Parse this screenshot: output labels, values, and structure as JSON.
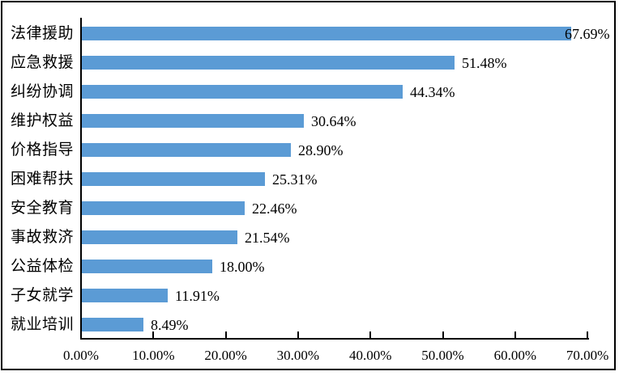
{
  "chart_data": {
    "type": "bar",
    "orientation": "horizontal",
    "title": "",
    "xlabel": "",
    "ylabel": "",
    "xlim": [
      0,
      70
    ],
    "grid": false,
    "legend": "none",
    "categories": [
      "法律援助",
      "应急救援",
      "纠纷协调",
      "维护权益",
      "价格指导",
      "困难帮扶",
      "安全教育",
      "事故救济",
      "公益体检",
      "子女就学",
      "就业培训"
    ],
    "values": [
      67.69,
      51.48,
      44.34,
      30.64,
      28.9,
      25.31,
      22.46,
      21.54,
      18.0,
      11.91,
      8.49
    ],
    "value_labels": [
      "67.69%",
      "51.48%",
      "44.34%",
      "30.64%",
      "28.90%",
      "25.31%",
      "22.46%",
      "21.54%",
      "18.00%",
      "11.91%",
      "8.49%"
    ],
    "x_tick_labels": [
      "0.00%",
      "10.00%",
      "20.00%",
      "30.00%",
      "40.00%",
      "50.00%",
      "60.00%",
      "70.00%"
    ],
    "x_tick_values": [
      0,
      10,
      20,
      30,
      40,
      50,
      60,
      70
    ],
    "bar_color": "#5B9BD5",
    "axis_color": "#000000",
    "text_color": "#000000",
    "frame_color": "#000000",
    "background_color": "#FFFFFF"
  }
}
